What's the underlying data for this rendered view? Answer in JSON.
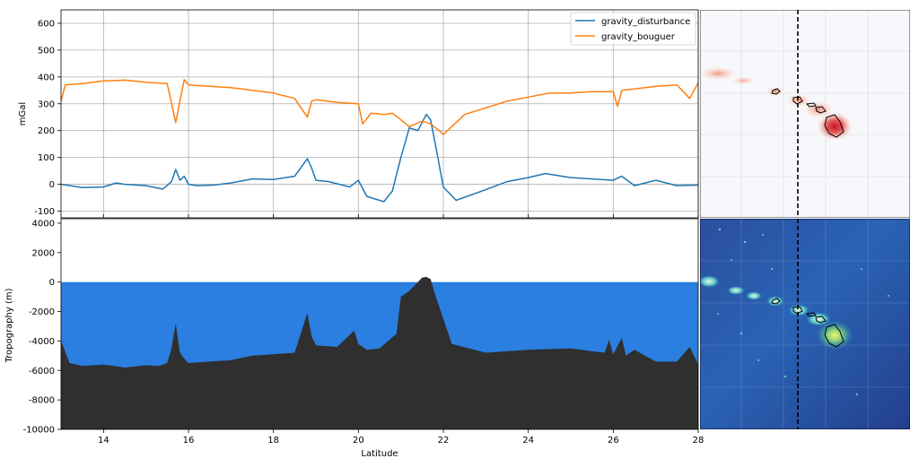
{
  "colors": {
    "disturbance": "#1f77b4",
    "bouguer": "#ff7f0e",
    "ocean": "#2a7fe0",
    "topography": "#2f2f2f",
    "profile_line": "#000000"
  },
  "chart_data": [
    {
      "type": "line",
      "panel": "gravity-profile",
      "xlabel": "",
      "ylabel": "mGal",
      "xlim": [
        13,
        28
      ],
      "ylim": [
        -125,
        650
      ],
      "x_ticks": [
        14,
        16,
        18,
        20,
        22,
        24,
        26,
        28
      ],
      "y_ticks": [
        -100,
        0,
        100,
        200,
        300,
        400,
        500,
        600
      ],
      "grid": true,
      "legend": "top-right",
      "series": [
        {
          "name": "gravity_disturbance",
          "color_key": "disturbance",
          "x": [
            13.0,
            13.5,
            14.0,
            14.3,
            14.5,
            15.0,
            15.4,
            15.6,
            15.7,
            15.8,
            15.9,
            16.0,
            16.2,
            16.6,
            17.0,
            17.5,
            18.0,
            18.5,
            18.8,
            18.9,
            19.0,
            19.3,
            19.8,
            20.0,
            20.2,
            20.5,
            20.6,
            20.8,
            21.0,
            21.2,
            21.4,
            21.6,
            21.7,
            21.8,
            22.0,
            22.3,
            23.0,
            23.5,
            24.0,
            24.4,
            25.0,
            25.5,
            26.0,
            26.2,
            26.5,
            27.0,
            27.5,
            28.0
          ],
          "y": [
            0,
            -12,
            -10,
            5,
            0,
            -5,
            -18,
            10,
            55,
            15,
            30,
            0,
            -5,
            -3,
            5,
            20,
            18,
            30,
            95,
            60,
            15,
            10,
            -10,
            15,
            -45,
            -60,
            -65,
            -25,
            100,
            210,
            200,
            260,
            240,
            160,
            -10,
            -60,
            -20,
            10,
            25,
            40,
            25,
            20,
            15,
            30,
            -5,
            15,
            -5,
            -3
          ]
        },
        {
          "name": "gravity_bouguer",
          "color_key": "bouguer",
          "x": [
            13.0,
            13.1,
            13.5,
            14.0,
            14.5,
            15.0,
            15.5,
            15.7,
            15.8,
            15.9,
            16.0,
            16.5,
            17.0,
            17.5,
            18.0,
            18.5,
            18.8,
            18.9,
            19.0,
            19.5,
            20.0,
            20.1,
            20.3,
            20.6,
            20.8,
            21.0,
            21.2,
            21.5,
            21.7,
            21.9,
            22.0,
            22.5,
            23.0,
            23.5,
            24.0,
            24.5,
            25.0,
            25.5,
            26.0,
            26.1,
            26.2,
            26.5,
            27.0,
            27.5,
            27.8,
            28.0
          ],
          "y": [
            310,
            370,
            375,
            385,
            388,
            380,
            375,
            230,
            310,
            390,
            370,
            365,
            360,
            350,
            340,
            320,
            250,
            310,
            315,
            305,
            300,
            225,
            265,
            260,
            265,
            240,
            215,
            235,
            225,
            200,
            185,
            260,
            285,
            310,
            325,
            340,
            340,
            345,
            345,
            290,
            350,
            355,
            365,
            370,
            320,
            378
          ]
        }
      ]
    },
    {
      "type": "area",
      "panel": "topography-profile",
      "xlabel": "Latitude",
      "ylabel": "Tropography (m)",
      "xlim": [
        13,
        28
      ],
      "ylim": [
        -10000,
        4300
      ],
      "x_ticks": [
        14,
        16,
        18,
        20,
        22,
        24,
        26,
        28
      ],
      "x_tick_labels": [
        "14",
        "16",
        "18",
        "20",
        "22",
        "24",
        "26",
        "28"
      ],
      "y_ticks": [
        -10000,
        -8000,
        -6000,
        -4000,
        -2000,
        0,
        2000,
        4000
      ],
      "grid": false,
      "sea_level": 0,
      "series": [
        {
          "name": "",
          "color_key": "topography",
          "x": [
            13.0,
            13.2,
            13.5,
            14.0,
            14.5,
            15.0,
            15.3,
            15.5,
            15.6,
            15.7,
            15.8,
            15.9,
            16.0,
            16.5,
            17.0,
            17.5,
            18.0,
            18.5,
            18.8,
            18.9,
            19.0,
            19.5,
            19.9,
            20.0,
            20.2,
            20.5,
            20.7,
            20.9,
            21.0,
            21.2,
            21.4,
            21.5,
            21.6,
            21.7,
            21.8,
            22.0,
            22.2,
            23.0,
            23.5,
            24.0,
            24.5,
            25.0,
            25.5,
            25.8,
            25.9,
            26.0,
            26.2,
            26.3,
            26.5,
            27.0,
            27.5,
            27.8,
            28.0
          ],
          "y": [
            -4000,
            -5500,
            -5700,
            -5600,
            -5800,
            -5650,
            -5700,
            -5500,
            -4500,
            -2800,
            -4800,
            -5200,
            -5500,
            -5400,
            -5300,
            -5000,
            -4900,
            -4800,
            -2100,
            -3700,
            -4300,
            -4400,
            -3300,
            -4200,
            -4600,
            -4500,
            -4000,
            -3500,
            -1000,
            -600,
            0,
            300,
            350,
            200,
            -800,
            -2500,
            -4200,
            -4800,
            -4700,
            -4600,
            -4550,
            -4500,
            -4700,
            -4800,
            -3900,
            -4900,
            -3800,
            -5000,
            -4600,
            -5400,
            -5400,
            -4400,
            -5600
          ]
        }
      ]
    }
  ]
}
